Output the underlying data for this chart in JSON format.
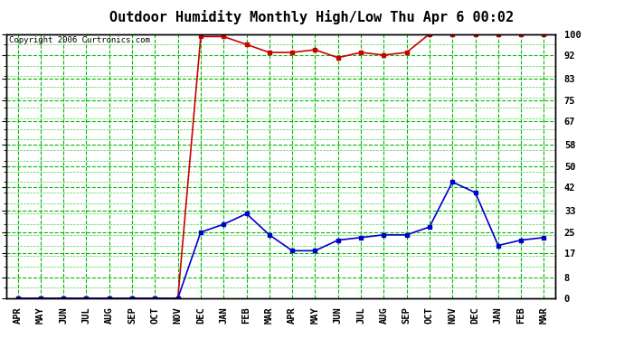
{
  "title": "Outdoor Humidity Monthly High/Low Thu Apr 6 00:02",
  "copyright": "Copyright 2006 Curtronics.com",
  "x_labels": [
    "APR",
    "MAY",
    "JUN",
    "JUL",
    "AUG",
    "SEP",
    "OCT",
    "NOV",
    "DEC",
    "JAN",
    "FEB",
    "MAR",
    "APR",
    "MAY",
    "JUN",
    "JUL",
    "AUG",
    "SEP",
    "OCT",
    "NOV",
    "DEC",
    "JAN",
    "FEB",
    "MAR"
  ],
  "high_values": [
    0,
    0,
    0,
    0,
    0,
    0,
    0,
    0,
    99,
    99,
    96,
    93,
    93,
    94,
    91,
    93,
    92,
    93,
    100,
    100,
    100,
    100,
    100,
    100
  ],
  "low_values": [
    0,
    0,
    0,
    0,
    0,
    0,
    0,
    0,
    25,
    28,
    32,
    24,
    18,
    18,
    22,
    23,
    24,
    24,
    27,
    44,
    40,
    20,
    22,
    23
  ],
  "y_ticks": [
    0,
    8,
    17,
    25,
    33,
    42,
    50,
    58,
    67,
    75,
    83,
    92,
    100
  ],
  "high_color": "#cc0000",
  "low_color": "#0000cc",
  "bg_color": "#ffffff",
  "grid_color": "#00bb00",
  "plot_bg": "#ffffff",
  "border_color": "#000000",
  "title_fontsize": 11,
  "copyright_fontsize": 6.5,
  "tick_fontsize": 7.5,
  "ylim": [
    0,
    100
  ],
  "marker": "s",
  "markersize": 2.5,
  "linewidth": 1.2
}
